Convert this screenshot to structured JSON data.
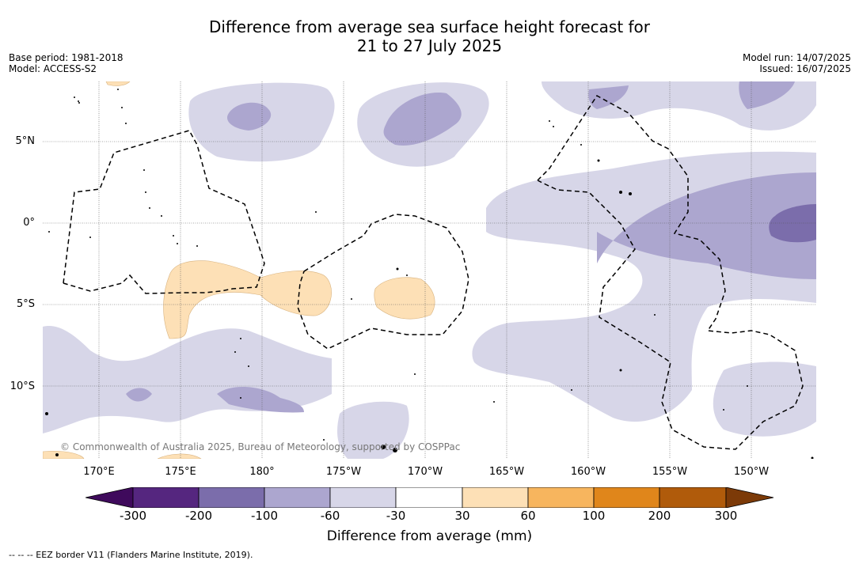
{
  "header": {
    "title_line1": "Difference from average sea surface height forecast for",
    "title_line2": "21 to 27 July 2025",
    "base_period": "Base period: 1981-2018",
    "model": "Model: ACCESS-S2",
    "model_run": "Model run: 14/07/2025",
    "issued": "Issued: 16/07/2025"
  },
  "map": {
    "lat_labels": [
      "5°N",
      "0°",
      "5°S",
      "10°S"
    ],
    "lon_labels": [
      "170°E",
      "175°E",
      "180°",
      "175°W",
      "170°W",
      "165°W",
      "160°W",
      "155°W",
      "150°W"
    ],
    "copyright": "© Commonwealth of Australia 2025, Bureau of Meteorology, supported by COSPPac"
  },
  "legend": {
    "ticks": [
      "-300",
      "-200",
      "-100",
      "-60",
      "-30",
      "30",
      "60",
      "100",
      "200",
      "300"
    ],
    "colors": [
      "#3f0a5c",
      "#55267f",
      "#7b6dab",
      "#aca6cf",
      "#d7d6e8",
      "#ffffff",
      "#fde0b6",
      "#f7b55e",
      "#e0861b",
      "#b05b0b",
      "#7c3a08"
    ],
    "title": "Difference from average (mm)"
  },
  "footnote": "--  --  -- EEZ border V11 (Flanders Marine Institute, 2019)."
}
